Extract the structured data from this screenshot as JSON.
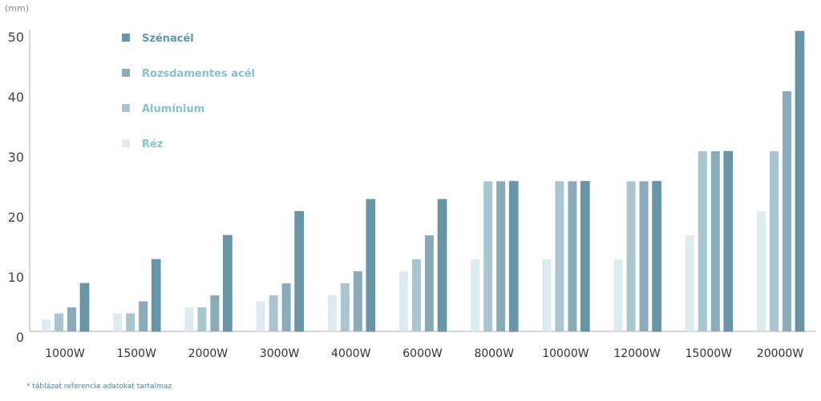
{
  "unit_label": "(mm)",
  "footnote": "*  táblázat referencia adatokat tartalmaz",
  "chart_data": {
    "type": "bar",
    "title": "",
    "xlabel": "",
    "ylabel": "(mm)",
    "ylim": [
      0,
      50
    ],
    "yticks": [
      0,
      10,
      20,
      30,
      40,
      50
    ],
    "grid": false,
    "legend_position": "top-left",
    "categories": [
      "1000W",
      "1500W",
      "2000W",
      "3000W",
      "4000W",
      "6000W",
      "8000W",
      "10000W",
      "12000W",
      "15000W",
      "20000W"
    ],
    "series": [
      {
        "name": "Réz",
        "color": "#dcebef",
        "values": [
          2,
          3,
          4,
          5,
          6,
          10,
          12,
          12,
          12,
          16,
          20
        ]
      },
      {
        "name": "Alumínium",
        "color": "#a7c6cf",
        "values": [
          3,
          3,
          4,
          6,
          8,
          12,
          25,
          25,
          25,
          30,
          30
        ]
      },
      {
        "name": "Rozsdamentes acél",
        "color": "#88abb9",
        "values": [
          4,
          5,
          6,
          8,
          10,
          16,
          25,
          25,
          25,
          30,
          40
        ]
      },
      {
        "name": "Szénacél",
        "color": "#6796a9",
        "values": [
          8,
          12,
          16,
          20,
          22,
          22,
          25,
          25,
          25,
          30,
          50
        ]
      }
    ],
    "legend_order": [
      "Szénacél",
      "Rozsdamentes acél",
      "Alumínium",
      "Réz"
    ],
    "legend_text_colors": {
      "Szénacél": "#5b9ab1",
      "Rozsdamentes acél": "#82c3d6",
      "Alumínium": "#82c3d6",
      "Réz": "#82c3d6"
    }
  }
}
